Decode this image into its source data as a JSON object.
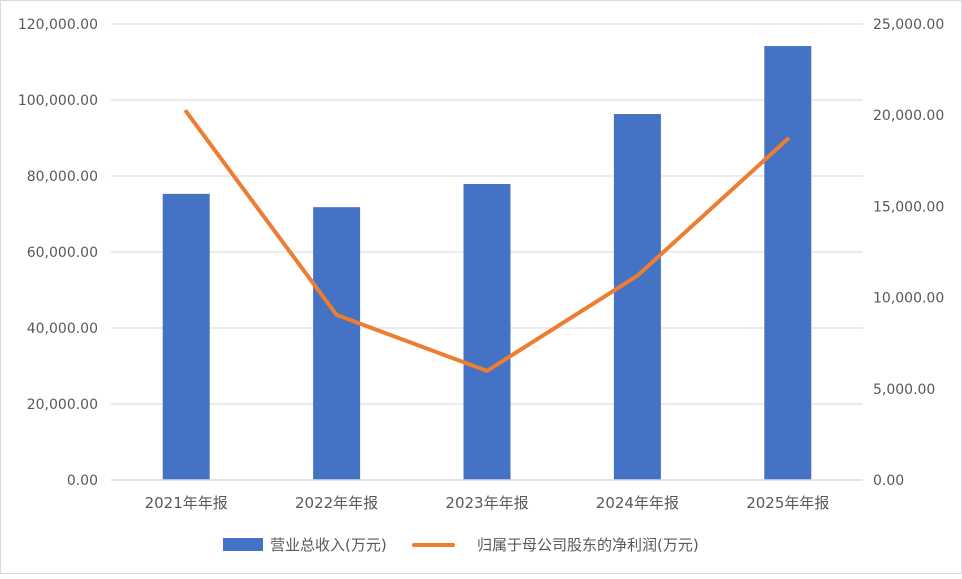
{
  "chart_data": {
    "type": "bar+line",
    "title": "",
    "categories": [
      "2021年年报",
      "2022年年报",
      "2023年年报",
      "2024年年报",
      "2025年年报"
    ],
    "series": [
      {
        "name": "营业总收入(万元)",
        "type": "bar",
        "axis": "left",
        "color": "#4472C4",
        "values": [
          75300,
          71800,
          77900,
          96300,
          114200
        ]
      },
      {
        "name": "归属于母公司股东的净利润(万元)",
        "type": "line",
        "axis": "right",
        "color": "#ED7D31",
        "values": [
          20200,
          9050,
          5980,
          11200,
          18700
        ]
      }
    ],
    "y_left": {
      "min": 0,
      "max": 120000,
      "step": 20000,
      "tick_labels": [
        "0.00",
        "20,000.00",
        "40,000.00",
        "60,000.00",
        "80,000.00",
        "100,000.00",
        "120,000.00"
      ]
    },
    "y_right": {
      "min": 0,
      "max": 25000,
      "step": 5000,
      "tick_labels": [
        "0.00",
        "5,000.00",
        "10,000.00",
        "15,000.00",
        "20,000.00",
        "25,000.00"
      ]
    },
    "xlabel": "",
    "ylabel": "",
    "grid": true,
    "legend_position": "bottom"
  },
  "legend": {
    "bar_label": "营业总收入(万元)",
    "line_label": "归属于母公司股东的净利润(万元)"
  }
}
